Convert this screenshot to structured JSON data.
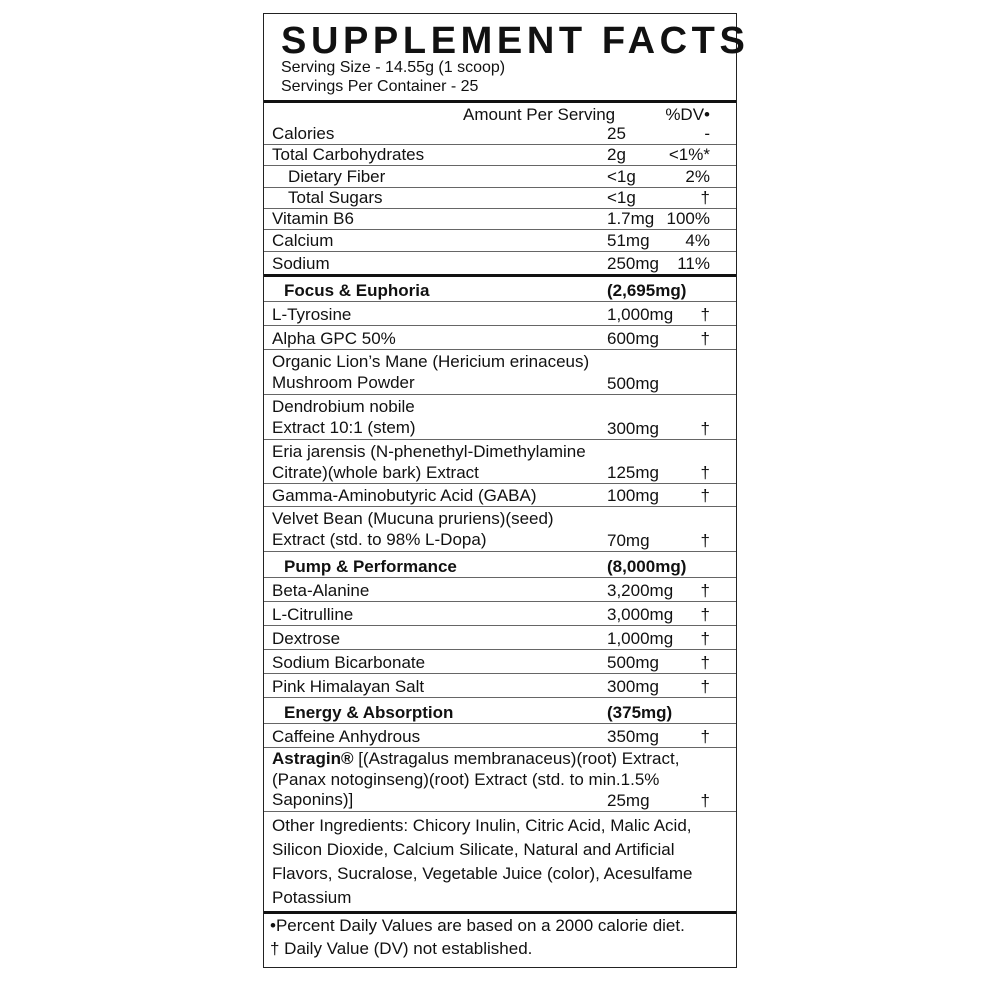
{
  "title": "SUPPLEMENT FACTS",
  "serving_size": "Serving Size - 14.55g (1 scoop)",
  "servings_per_container": "Servings Per Container - 25",
  "columns": {
    "amount": "Amount Per Serving",
    "dv": "%DV•"
  },
  "nutrients": [
    {
      "name": "Calories",
      "amount": "25",
      "dv": "-"
    },
    {
      "name": "Total Carbohydrates",
      "amount": "2g",
      "dv": "<1%*"
    },
    {
      "name": "Dietary Fiber",
      "amount": "<1g",
      "dv": "2%"
    },
    {
      "name": "Total Sugars",
      "amount": "<1g",
      "dv": "†"
    },
    {
      "name": "Vitamin B6",
      "amount": "1.7mg",
      "dv": "100%"
    },
    {
      "name": "Calcium",
      "amount": "51mg",
      "dv": "4%"
    },
    {
      "name": "Sodium",
      "amount": "250mg",
      "dv": "11%"
    }
  ],
  "sections": [
    {
      "name": "Focus & Euphoria",
      "total": "(2,695mg)",
      "items": [
        {
          "name": "L-Tyrosine",
          "amount": "1,000mg",
          "dv": "†"
        },
        {
          "name": "Alpha GPC 50%",
          "amount": "600mg",
          "dv": "†"
        },
        {
          "line1": "Organic Lion’s Mane (Hericium erinaceus)",
          "line2": "Mushroom Powder",
          "amount": "500mg",
          "dv": ""
        },
        {
          "line1": "Dendrobium nobile",
          "line2": "Extract 10:1 (stem)",
          "amount": "300mg",
          "dv": "†"
        },
        {
          "line1": "Eria jarensis (N-phenethyl-Dimethylamine",
          "line2": "Citrate)(whole bark) Extract",
          "amount": "125mg",
          "dv": "†"
        },
        {
          "name": "Gamma-Aminobutyric Acid (GABA)",
          "amount": "100mg",
          "dv": "†"
        },
        {
          "line1": "Velvet Bean (Mucuna pruriens)(seed)",
          "line2": "Extract (std. to 98% L-Dopa)",
          "amount": "70mg",
          "dv": "†"
        }
      ]
    },
    {
      "name": "Pump & Performance",
      "total": "(8,000mg)",
      "items": [
        {
          "name": "Beta-Alanine",
          "amount": "3,200mg",
          "dv": "†"
        },
        {
          "name": "L-Citrulline",
          "amount": "3,000mg",
          "dv": "†"
        },
        {
          "name": "Dextrose",
          "amount": "1,000mg",
          "dv": "†"
        },
        {
          "name": "Sodium Bicarbonate",
          "amount": "500mg",
          "dv": "†"
        },
        {
          "name": "Pink Himalayan Salt",
          "amount": "300mg",
          "dv": "†"
        }
      ]
    },
    {
      "name": "Energy & Absorption",
      "total": "(375mg)",
      "items": [
        {
          "name": "Caffeine Anhydrous",
          "amount": "350mg",
          "dv": "†"
        }
      ]
    }
  ],
  "astragin": {
    "brand": "Astragin®",
    "line1": " [(Astragalus membranaceus)(root) Extract,",
    "line2": "(Panax notoginseng)(root) Extract (std. to min.1.5%",
    "line3": "Saponins)]",
    "amount": "25mg",
    "dv": "†"
  },
  "other_ingredients": "Other Ingredients: Chicory Inulin, Citric Acid, Malic Acid, Silicon Dioxide, Calcium Silicate, Natural and Artificial Flavors, Sucralose, Vegetable Juice (color), Acesulfame Potassium",
  "footnotes": [
    "•Percent Daily Values are based on a 2000 calorie diet.",
    "† Daily Value (DV) not established."
  ]
}
